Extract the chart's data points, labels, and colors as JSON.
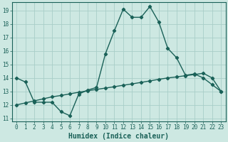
{
  "xlabel": "Humidex (Indice chaleur)",
  "bg_color": "#cde8e2",
  "grid_color": "#a8cec8",
  "line_color": "#1a6158",
  "xlim": [
    -0.5,
    23.5
  ],
  "ylim": [
    10.8,
    19.6
  ],
  "yticks": [
    11,
    12,
    13,
    14,
    15,
    16,
    17,
    18,
    19
  ],
  "xticks": [
    0,
    1,
    2,
    3,
    4,
    5,
    6,
    7,
    8,
    9,
    10,
    11,
    12,
    13,
    14,
    15,
    16,
    17,
    18,
    19,
    20,
    21,
    22,
    23
  ],
  "curve1_x": [
    0,
    1,
    2,
    3,
    4,
    5,
    6,
    7,
    8,
    9,
    10,
    11,
    12,
    13,
    14,
    15,
    16,
    17,
    18,
    19,
    20,
    21,
    22,
    23
  ],
  "curve1_y": [
    14.0,
    13.7,
    12.2,
    12.2,
    12.2,
    11.5,
    11.2,
    12.8,
    13.1,
    13.3,
    15.8,
    17.5,
    19.1,
    18.5,
    18.5,
    19.3,
    18.15,
    16.2,
    15.5,
    14.2,
    14.3,
    14.0,
    13.5,
    13.0
  ],
  "curve2_x": [
    0,
    1,
    2,
    3,
    4,
    5,
    6,
    7,
    8,
    9,
    10,
    11,
    12,
    13,
    14,
    15,
    16,
    17,
    18,
    19,
    20,
    21,
    22,
    23
  ],
  "curve2_y": [
    12.0,
    12.15,
    12.3,
    12.45,
    12.6,
    12.7,
    12.82,
    12.94,
    13.05,
    13.15,
    13.25,
    13.35,
    13.46,
    13.56,
    13.67,
    13.78,
    13.9,
    14.0,
    14.08,
    14.17,
    14.25,
    14.35,
    14.0,
    13.0
  ],
  "marker_style": "D",
  "marker_size": 2.2,
  "line_width": 1.0,
  "tick_fontsize": 5.5,
  "xlabel_fontsize": 7.0
}
